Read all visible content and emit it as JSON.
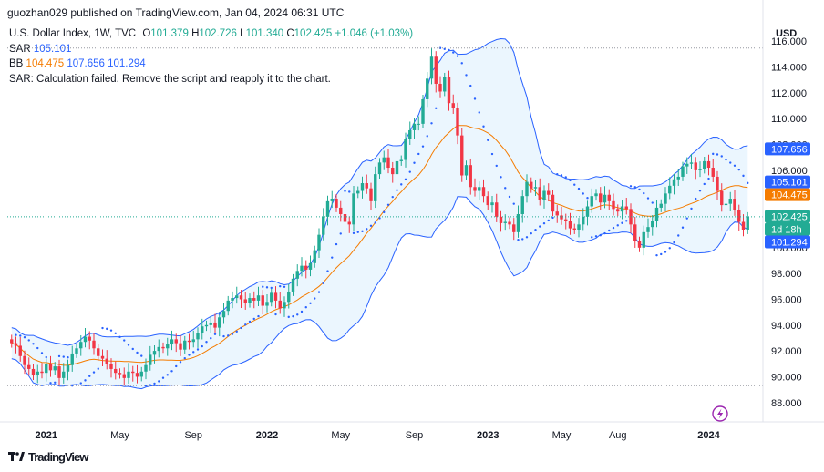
{
  "header": {
    "published": "guozhan029 published on TradingView.com, Jan 04, 2024 06:31 UTC"
  },
  "legend": {
    "symbol": "U.S. Dollar Index, 1W, TVC",
    "ohlc": {
      "o_label": "O",
      "o": "101.379",
      "h_label": "H",
      "h": "102.726",
      "l_label": "L",
      "l": "101.340",
      "c_label": "C",
      "c": "102.425",
      "change": "+1.046 (+1.03%)"
    },
    "sar_label": "SAR",
    "sar_value": "105.101",
    "bb_label": "BB",
    "bb_basis": "104.475",
    "bb_upper": "107.656",
    "bb_lower": "101.294",
    "sar_error": "SAR: Calculation failed. Remove the script and reapply it to the chart."
  },
  "footer": {
    "brand": "TradingView"
  },
  "colors": {
    "up": "#22ab94",
    "down": "#f23645",
    "bb_band": "#2962ff",
    "bb_basis": "#f57c00",
    "bb_fill": "#e3f2fd",
    "sar": "#2962ff",
    "current_tag": "#22ab94",
    "flash": "#9c27b0"
  },
  "chart_data": {
    "type": "candlestick",
    "currency": "USD",
    "y_ticks": [
      "116.000",
      "114.000",
      "112.000",
      "110.000",
      "108.000",
      "106.000",
      "104.000",
      "102.000",
      "100.000",
      "98.000",
      "96.000",
      "94.000",
      "92.000",
      "90.000",
      "88.000"
    ],
    "ylim": [
      86.5,
      117.5
    ],
    "x_labels": [
      {
        "label": "2021",
        "week": 8
      },
      {
        "label": "May",
        "week": 25
      },
      {
        "label": "Sep",
        "week": 42
      },
      {
        "label": "2022",
        "week": 59
      },
      {
        "label": "May",
        "week": 76
      },
      {
        "label": "Sep",
        "week": 93
      },
      {
        "label": "2023",
        "week": 110
      },
      {
        "label": "May",
        "week": 127
      },
      {
        "label": "Aug",
        "week": 140
      },
      {
        "label": "2024",
        "week": 161
      }
    ],
    "price_tags": [
      {
        "label": "107.656",
        "value": 107.656,
        "kind": "bb_upper"
      },
      {
        "label": "105.101",
        "value": 105.101,
        "kind": "sar"
      },
      {
        "label": "104.475",
        "value": 104.475,
        "kind": "bb_basis"
      },
      {
        "label": "102.425",
        "value": 102.425,
        "kind": "close"
      },
      {
        "label": "1d 18h",
        "value": 101.55,
        "kind": "countdown"
      },
      {
        "label": "101.294",
        "value": 101.294,
        "kind": "bb_lower"
      }
    ],
    "closes": [
      92.6,
      92.4,
      91.6,
      90.9,
      90.6,
      90.1,
      90.4,
      90.3,
      91.0,
      90.5,
      90.8,
      89.9,
      90.4,
      90.9,
      91.8,
      92.2,
      92.7,
      93.1,
      92.8,
      92.2,
      91.6,
      91.4,
      91.0,
      90.6,
      90.3,
      90.2,
      89.9,
      90.4,
      90.3,
      90.0,
      90.4,
      90.9,
      91.7,
      92.0,
      92.3,
      92.2,
      92.5,
      92.9,
      92.6,
      92.1,
      92.8,
      92.7,
      92.9,
      93.4,
      93.9,
      94.0,
      94.2,
      93.8,
      94.6,
      95.1,
      95.9,
      96.1,
      96.3,
      96.0,
      95.7,
      96.1,
      95.9,
      96.3,
      95.5,
      95.8,
      96.5,
      95.9,
      95.3,
      95.8,
      96.6,
      97.6,
      98.2,
      98.6,
      98.3,
      98.8,
      99.8,
      101.0,
      102.4,
      103.6,
      103.8,
      103.1,
      102.6,
      102.0,
      101.8,
      104.2,
      104.4,
      105.0,
      104.6,
      103.6,
      105.7,
      106.6,
      107.0,
      106.2,
      105.7,
      106.7,
      106.8,
      108.4,
      109.1,
      109.6,
      109.6,
      111.5,
      113.1,
      114.8,
      112.7,
      112.1,
      113.2,
      111.2,
      110.8,
      108.7,
      105.6,
      106.4,
      104.7,
      104.4,
      104.7,
      104.0,
      103.3,
      103.5,
      102.4,
      101.9,
      102.0,
      101.8,
      101.2,
      102.6,
      104.0,
      105.1,
      104.6,
      104.7,
      103.7,
      104.4,
      104.1,
      102.8,
      102.5,
      102.2,
      102.1,
      101.5,
      101.4,
      101.8,
      102.4,
      103.2,
      104.0,
      104.2,
      103.5,
      104.1,
      103.6,
      103.0,
      102.8,
      103.2,
      103.0,
      101.8,
      100.5,
      100.0,
      101.2,
      101.6,
      102.1,
      103.1,
      103.4,
      104.2,
      104.8,
      105.3,
      105.5,
      106.3,
      106.5,
      106.6,
      106.0,
      106.1,
      106.7,
      106.2,
      105.5,
      104.4,
      103.3,
      103.4,
      103.8,
      102.9,
      102.0,
      101.4,
      102.4
    ]
  }
}
